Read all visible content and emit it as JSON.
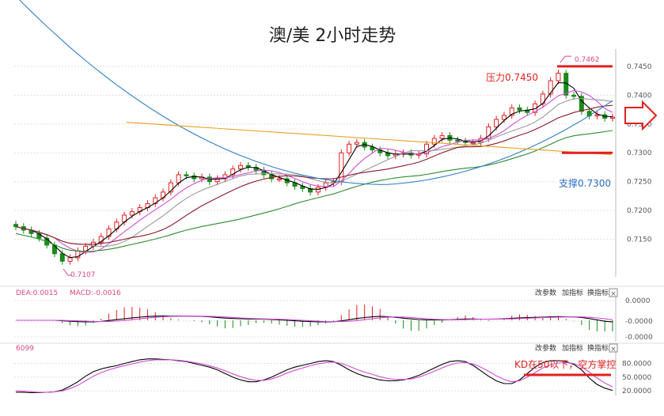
{
  "chart_data": {
    "type": "candlestick",
    "title": "澳/美 2小时走势",
    "price_panel": {
      "ylim": [
        0.7085,
        0.748
      ],
      "y_ticks": [
        "0.7450",
        "0.7400",
        "0.7350",
        "0.7300",
        "0.7250",
        "0.7200",
        "0.7150"
      ],
      "y_tick_values": [
        0.745,
        0.74,
        0.735,
        0.73,
        0.725,
        0.72,
        0.715
      ],
      "closes": [
        0.7172,
        0.7166,
        0.716,
        0.7152,
        0.714,
        0.7125,
        0.7112,
        0.7118,
        0.713,
        0.7138,
        0.7145,
        0.7155,
        0.7168,
        0.718,
        0.7192,
        0.7198,
        0.7205,
        0.7212,
        0.7222,
        0.7232,
        0.7248,
        0.7262,
        0.726,
        0.7255,
        0.7258,
        0.725,
        0.7255,
        0.7262,
        0.7272,
        0.7278,
        0.7275,
        0.727,
        0.7262,
        0.7255,
        0.7255,
        0.7248,
        0.7242,
        0.7238,
        0.7232,
        0.724,
        0.7248,
        0.725,
        0.73,
        0.7315,
        0.7318,
        0.731,
        0.7305,
        0.73,
        0.7295,
        0.7298,
        0.73,
        0.7296,
        0.7298,
        0.7315,
        0.7325,
        0.733,
        0.7322,
        0.732,
        0.7318,
        0.7318,
        0.7325,
        0.7345,
        0.7358,
        0.7365,
        0.7378,
        0.7374,
        0.737,
        0.7385,
        0.7402,
        0.7425,
        0.7438,
        0.74,
        0.7398,
        0.7372,
        0.7364,
        0.7366,
        0.736,
        0.7362
      ],
      "high_label": "0.7462",
      "low_label": "0.7107",
      "resistance": {
        "label": "压力0.7450",
        "value": 0.745
      },
      "support": {
        "label": "支撑0.7300",
        "value": 0.73
      },
      "series_colors": {
        "ma_fast": "#000000",
        "ma_mid": "#d24bd6",
        "ma_slow": "#8a1a2c",
        "ma_green": "#2e8b2e",
        "ma_blue": "#2f7fc8",
        "ma_orange": "#e8a020",
        "ma_gray": "#999999"
      }
    },
    "macd_panel": {
      "legend_dea": "DEA:0.0015",
      "legend_macd": "MACD:-0.0016",
      "y_ticks": [
        "0.0000",
        "-0.0000",
        "-0.0000"
      ],
      "toolbar": [
        "改参数",
        "加指标",
        "换指标"
      ]
    },
    "kd_panel": {
      "legend": "6099",
      "y_ticks": [
        "80.0000",
        "50.0000",
        "20.0000"
      ],
      "ylim": [
        10,
        100
      ],
      "k": [
        17,
        17,
        16,
        16,
        17,
        18,
        22,
        30,
        40,
        52,
        62,
        68,
        72,
        75,
        80,
        84,
        88,
        90,
        90,
        89,
        88,
        86,
        84,
        80,
        76,
        72,
        66,
        58,
        50,
        44,
        40,
        40,
        44,
        50,
        58,
        66,
        72,
        76,
        80,
        84,
        86,
        84,
        76,
        66,
        58,
        52,
        48,
        44,
        42,
        42,
        44,
        48,
        54,
        62,
        70,
        78,
        84,
        86,
        84,
        76,
        64,
        52,
        42,
        36,
        36,
        44,
        58,
        72,
        82,
        86,
        86,
        84,
        78,
        66,
        48,
        34,
        26,
        21
      ],
      "d": [
        20,
        19,
        18,
        17,
        17,
        18,
        20,
        25,
        32,
        42,
        52,
        60,
        66,
        71,
        75,
        79,
        83,
        86,
        88,
        88,
        88,
        87,
        85,
        82,
        79,
        75,
        70,
        64,
        57,
        51,
        46,
        43,
        43,
        46,
        52,
        59,
        65,
        70,
        75,
        79,
        82,
        83,
        80,
        74,
        67,
        61,
        56,
        51,
        47,
        45,
        45,
        46,
        50,
        56,
        63,
        70,
        77,
        81,
        82,
        79,
        72,
        63,
        53,
        45,
        40,
        42,
        50,
        60,
        70,
        77,
        81,
        82,
        80,
        73,
        61,
        48,
        37,
        29
      ],
      "annotation": "KD在50以下，空方掌控",
      "toolbar": [
        "改参数",
        "加指标",
        "换指标"
      ]
    }
  }
}
